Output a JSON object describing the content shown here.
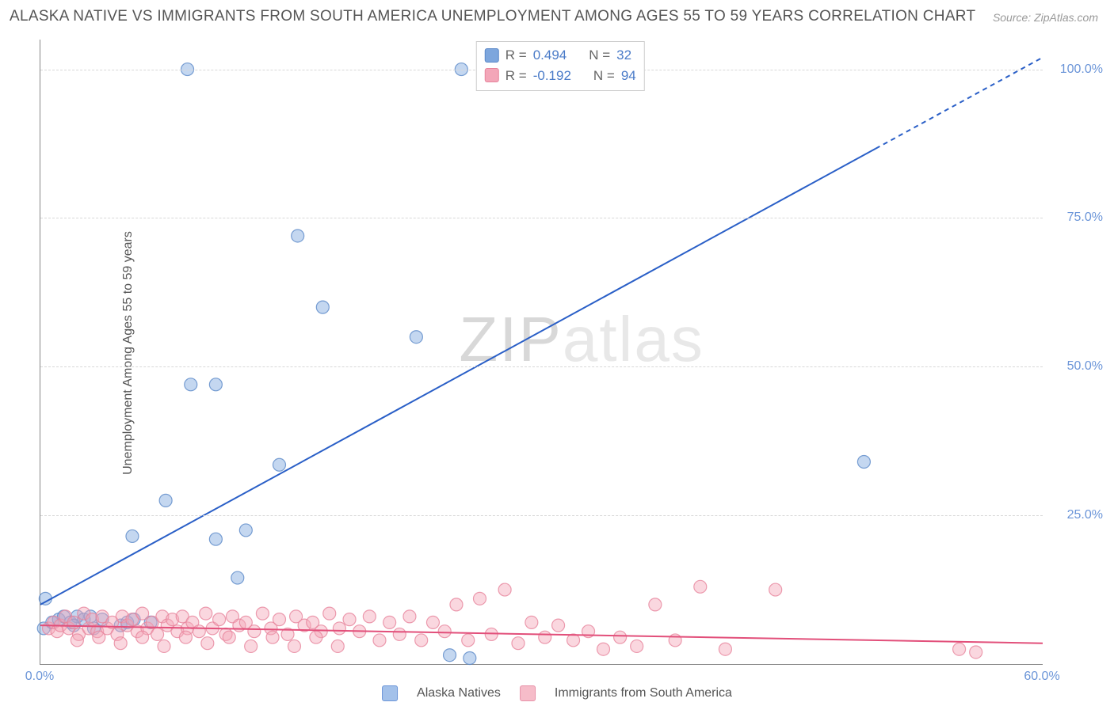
{
  "title": "ALASKA NATIVE VS IMMIGRANTS FROM SOUTH AMERICA UNEMPLOYMENT AMONG AGES 55 TO 59 YEARS CORRELATION CHART",
  "source": "Source: ZipAtlas.com",
  "ylabel": "Unemployment Among Ages 55 to 59 years",
  "watermark_a": "ZIP",
  "watermark_b": "atlas",
  "chart": {
    "type": "scatter",
    "background_color": "#ffffff",
    "grid_color": "#d8d8d8",
    "axis_color": "#888888",
    "xlim": [
      0,
      60
    ],
    "ylim": [
      0,
      105
    ],
    "xticks": [
      {
        "val": 0,
        "label": "0.0%"
      },
      {
        "val": 60,
        "label": "60.0%"
      }
    ],
    "yticks": [
      {
        "val": 25,
        "label": "25.0%"
      },
      {
        "val": 50,
        "label": "50.0%"
      },
      {
        "val": 75,
        "label": "75.0%"
      },
      {
        "val": 100,
        "label": "100.0%"
      }
    ],
    "marker_radius": 8,
    "marker_opacity": 0.45,
    "marker_stroke_opacity": 0.8,
    "series": [
      {
        "name": "Alaska Natives",
        "color": "#7da6dd",
        "stroke": "#5a88c8",
        "trend_color": "#2a5fc7",
        "trend_width": 2,
        "trend_solid_end": 50,
        "trend": {
          "x1": 0,
          "y1": 10,
          "x2": 60,
          "y2": 102
        },
        "R": "0.494",
        "N": "32",
        "points": [
          [
            0.2,
            6
          ],
          [
            0.3,
            11
          ],
          [
            0.7,
            7
          ],
          [
            1.1,
            7.5
          ],
          [
            1.4,
            8
          ],
          [
            1.8,
            7
          ],
          [
            2.2,
            8
          ],
          [
            2.0,
            6.5
          ],
          [
            2.6,
            7.5
          ],
          [
            3.0,
            8
          ],
          [
            3.2,
            6
          ],
          [
            3.7,
            7.5
          ],
          [
            4.8,
            6.5
          ],
          [
            5.2,
            7
          ],
          [
            5.6,
            7.5
          ],
          [
            6.6,
            7
          ],
          [
            5.5,
            21.5
          ],
          [
            7.5,
            27.5
          ],
          [
            10.5,
            21
          ],
          [
            11.8,
            14.5
          ],
          [
            12.3,
            22.5
          ],
          [
            9.0,
            47
          ],
          [
            10.5,
            47
          ],
          [
            14.3,
            33.5
          ],
          [
            15.4,
            72
          ],
          [
            16.9,
            60
          ],
          [
            22.5,
            55
          ],
          [
            49.3,
            34
          ],
          [
            24.5,
            1.5
          ],
          [
            25.7,
            1
          ],
          [
            8.8,
            100
          ],
          [
            25.2,
            100
          ]
        ]
      },
      {
        "name": "Immigrants from South America",
        "color": "#f3a6b8",
        "stroke": "#e7849c",
        "trend_color": "#e24f7a",
        "trend_width": 2,
        "trend": {
          "x1": 0,
          "y1": 6.5,
          "x2": 60,
          "y2": 3.5
        },
        "R": "-0.192",
        "N": "94",
        "points": [
          [
            0.5,
            6
          ],
          [
            0.8,
            7
          ],
          [
            1.0,
            5.5
          ],
          [
            1.2,
            6.5
          ],
          [
            1.5,
            8
          ],
          [
            1.7,
            6
          ],
          [
            2.0,
            7
          ],
          [
            2.3,
            5
          ],
          [
            2.6,
            8.5
          ],
          [
            2.9,
            6
          ],
          [
            3.1,
            7.5
          ],
          [
            3.4,
            5.5
          ],
          [
            3.7,
            8
          ],
          [
            4.0,
            6
          ],
          [
            4.3,
            7
          ],
          [
            4.6,
            5
          ],
          [
            4.9,
            8
          ],
          [
            5.2,
            6.5
          ],
          [
            5.5,
            7.5
          ],
          [
            5.8,
            5.5
          ],
          [
            6.1,
            8.5
          ],
          [
            6.4,
            6
          ],
          [
            6.7,
            7
          ],
          [
            7.0,
            5
          ],
          [
            7.3,
            8
          ],
          [
            7.6,
            6.5
          ],
          [
            7.9,
            7.5
          ],
          [
            8.2,
            5.5
          ],
          [
            8.5,
            8
          ],
          [
            8.8,
            6
          ],
          [
            9.1,
            7
          ],
          [
            9.5,
            5.5
          ],
          [
            9.9,
            8.5
          ],
          [
            10.3,
            6
          ],
          [
            10.7,
            7.5
          ],
          [
            11.1,
            5
          ],
          [
            11.5,
            8
          ],
          [
            11.9,
            6.5
          ],
          [
            12.3,
            7
          ],
          [
            12.8,
            5.5
          ],
          [
            13.3,
            8.5
          ],
          [
            13.8,
            6
          ],
          [
            14.3,
            7.5
          ],
          [
            14.8,
            5
          ],
          [
            15.3,
            8
          ],
          [
            15.8,
            6.5
          ],
          [
            16.3,
            7
          ],
          [
            16.8,
            5.5
          ],
          [
            17.3,
            8.5
          ],
          [
            17.9,
            6
          ],
          [
            18.5,
            7.5
          ],
          [
            19.1,
            5.5
          ],
          [
            19.7,
            8
          ],
          [
            20.3,
            4
          ],
          [
            20.9,
            7
          ],
          [
            21.5,
            5
          ],
          [
            22.1,
            8
          ],
          [
            22.8,
            4
          ],
          [
            23.5,
            7
          ],
          [
            24.2,
            5.5
          ],
          [
            24.9,
            10
          ],
          [
            25.6,
            4
          ],
          [
            26.3,
            11
          ],
          [
            27.0,
            5
          ],
          [
            27.8,
            12.5
          ],
          [
            28.6,
            3.5
          ],
          [
            29.4,
            7
          ],
          [
            30.2,
            4.5
          ],
          [
            31.0,
            6.5
          ],
          [
            31.9,
            4
          ],
          [
            32.8,
            5.5
          ],
          [
            33.7,
            2.5
          ],
          [
            34.7,
            4.5
          ],
          [
            35.7,
            3
          ],
          [
            36.8,
            10
          ],
          [
            38.0,
            4
          ],
          [
            39.5,
            13
          ],
          [
            41.0,
            2.5
          ],
          [
            44.0,
            12.5
          ],
          [
            55.0,
            2.5
          ],
          [
            56.0,
            2
          ],
          [
            2.2,
            4
          ],
          [
            3.5,
            4.5
          ],
          [
            4.8,
            3.5
          ],
          [
            6.1,
            4.5
          ],
          [
            7.4,
            3
          ],
          [
            8.7,
            4.5
          ],
          [
            10.0,
            3.5
          ],
          [
            11.3,
            4.5
          ],
          [
            12.6,
            3
          ],
          [
            13.9,
            4.5
          ],
          [
            15.2,
            3
          ],
          [
            16.5,
            4.5
          ],
          [
            17.8,
            3
          ]
        ]
      }
    ],
    "stat_labels": {
      "r_label": "R =",
      "n_label": "N ="
    }
  },
  "legend_items": [
    {
      "label": "Alaska Natives",
      "fill": "#a3c1ea",
      "stroke": "#6b95d8"
    },
    {
      "label": "Immigrants from South America",
      "fill": "#f6bcc9",
      "stroke": "#e791a8"
    }
  ]
}
